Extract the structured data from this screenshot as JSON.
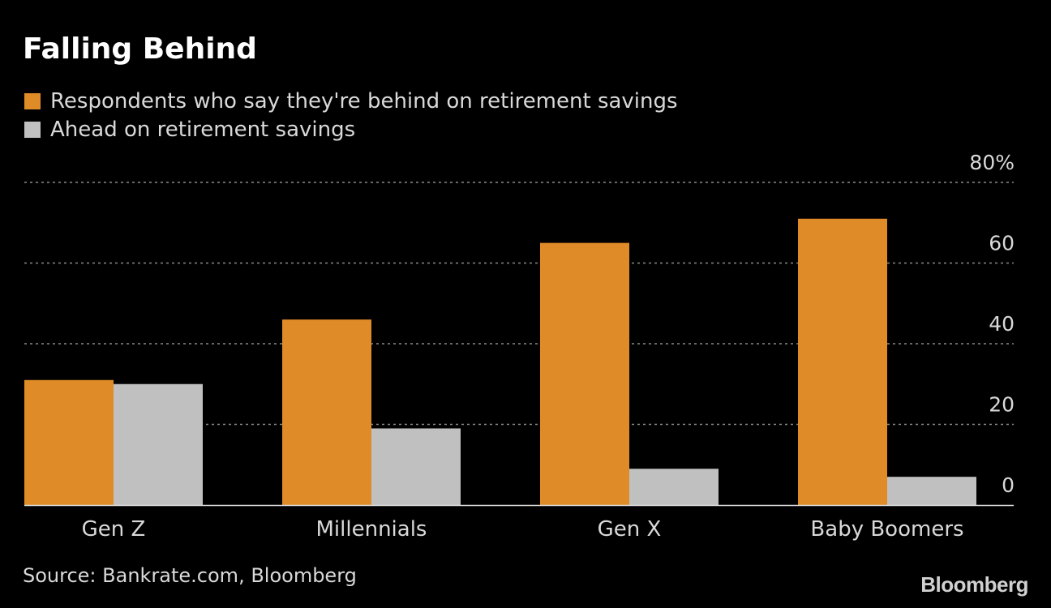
{
  "chart_data": {
    "type": "bar",
    "title": "Falling Behind",
    "categories": [
      "Gen Z",
      "Millennials",
      "Gen X",
      "Baby Boomers"
    ],
    "series": [
      {
        "name": "Respondents who say they're behind on retirement savings",
        "values": [
          31,
          46,
          65,
          71
        ]
      },
      {
        "name": "Ahead on retirement savings",
        "values": [
          30,
          19,
          9,
          7
        ]
      }
    ],
    "ylim": [
      0,
      80
    ],
    "y_ticks": [
      0,
      20,
      40,
      60,
      80
    ],
    "y_tick_labels": [
      "0",
      "20",
      "40",
      "60",
      "80%"
    ],
    "grid": true,
    "legend_position": "top-left",
    "colors": [
      "#df8b27",
      "#c0c0c0"
    ],
    "source": "Source: Bankrate.com, Bloomberg"
  },
  "branding": {
    "logo_text": "Bloomberg"
  }
}
